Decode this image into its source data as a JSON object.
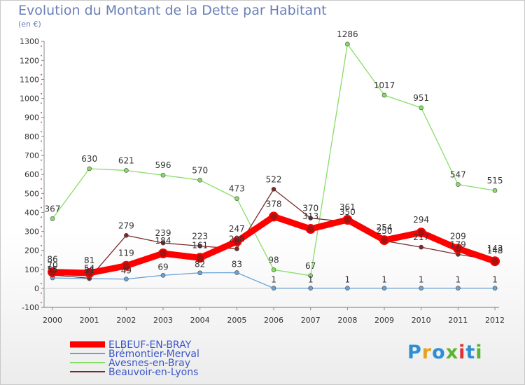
{
  "header": {
    "title": "Evolution du Montant de la Dette par Habitant",
    "unit": "(en €)"
  },
  "logo": {
    "text": "Proxiti",
    "colors": [
      "#2c8fd6",
      "#e8a020",
      "#2c8fd6",
      "#5ab52e",
      "#e03030",
      "#2c8fd6",
      "#5ab52e"
    ]
  },
  "chart_data": {
    "type": "line",
    "title": "Evolution du Montant de la Dette par Habitant",
    "ylabel": "(en €)",
    "xlabel": "",
    "categories": [
      "2000",
      "2001",
      "2002",
      "2003",
      "2004",
      "2005",
      "2006",
      "2007",
      "2008",
      "2009",
      "2010",
      "2011",
      "2012"
    ],
    "ylim": [
      -100,
      1300
    ],
    "yticks": [
      -100,
      0,
      100,
      200,
      300,
      400,
      500,
      600,
      700,
      800,
      900,
      1000,
      1100,
      1200,
      1300
    ],
    "grid": false,
    "legend_position": "bottom-left",
    "series": [
      {
        "name": "ELBEUF-EN-BRAY",
        "color": "#ff0000",
        "values": [
          86,
          81,
          119,
          184,
          161,
          247,
          378,
          313,
          361,
          254,
          294,
          209,
          143
        ]
      },
      {
        "name": "Brémontier-Merval",
        "color": "#6aa3d6",
        "values": [
          55,
          51,
          49,
          69,
          82,
          83,
          1,
          1,
          1,
          1,
          1,
          1,
          1
        ]
      },
      {
        "name": "Avesnes-en-Bray",
        "color": "#88dd66",
        "values": [
          367,
          630,
          621,
          596,
          570,
          473,
          98,
          67,
          1286,
          1017,
          951,
          547,
          515
        ]
      },
      {
        "name": "Beauvoir-en-Lyons",
        "color": "#7a2a2a",
        "values": [
          70,
          54,
          279,
          239,
          223,
          208,
          522,
          370,
          350,
          250,
          217,
          179,
          148
        ]
      }
    ]
  }
}
